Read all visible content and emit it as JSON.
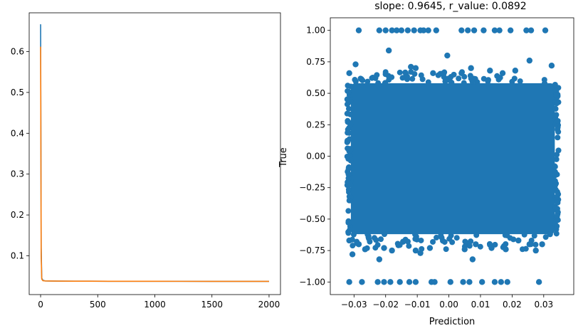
{
  "chart_data": [
    {
      "type": "line",
      "title": "",
      "xlabel": "",
      "ylabel": "",
      "xlim": [
        -100,
        2100
      ],
      "ylim": [
        0.005,
        0.695
      ],
      "xticks": [
        0,
        500,
        1000,
        1500,
        2000
      ],
      "yticks": [
        0.1,
        0.2,
        0.3,
        0.4,
        0.5,
        0.6
      ],
      "grid": false,
      "series": [
        {
          "color": "#1f77b4",
          "x": [
            0,
            5,
            10,
            20,
            40,
            80,
            150,
            300,
            600,
            1000,
            1500,
            2000
          ],
          "y": [
            0.667,
            0.12,
            0.045,
            0.04,
            0.0385,
            0.0383,
            0.038,
            0.0378,
            0.0376,
            0.0375,
            0.0374,
            0.0373
          ]
        },
        {
          "color": "#ff7f0e",
          "x": [
            0,
            5,
            10,
            20,
            40,
            80,
            150,
            300,
            600,
            1000,
            1500,
            2000
          ],
          "y": [
            0.612,
            0.1,
            0.043,
            0.039,
            0.0385,
            0.0382,
            0.038,
            0.0378,
            0.0376,
            0.0375,
            0.0374,
            0.0373
          ]
        }
      ]
    },
    {
      "type": "scatter",
      "title": "slope: 0.9645, r_value: 0.0892",
      "xlabel": "Prediction",
      "ylabel": "True",
      "xlim": [
        -0.0375,
        0.0395
      ],
      "ylim": [
        -1.1,
        1.1
      ],
      "xticks": [
        -0.03,
        -0.02,
        -0.01,
        0.0,
        0.01,
        0.02,
        0.03
      ],
      "xtick_labels": [
        "−0.03",
        "−0.02",
        "−0.01",
        "0.00",
        "0.01",
        "0.02",
        "0.03"
      ],
      "yticks": [
        -1.0,
        -0.75,
        -0.5,
        -0.25,
        0.0,
        0.25,
        0.5,
        0.75,
        1.0
      ],
      "ytick_labels": [
        "−1.00",
        "−0.75",
        "−0.50",
        "−0.25",
        "0.00",
        "0.25",
        "0.50",
        "0.75",
        "1.00"
      ],
      "grid": false,
      "color": "#1f77b4",
      "dense_region": {
        "x_range": [
          -0.031,
          0.0335
        ],
        "y_range": [
          -0.62,
          0.58
        ]
      },
      "points": [
        [
          -0.0285,
          1.0
        ],
        [
          -0.022,
          1.0
        ],
        [
          -0.02,
          1.0
        ],
        [
          -0.018,
          1.0
        ],
        [
          -0.0165,
          1.0
        ],
        [
          -0.015,
          1.0
        ],
        [
          -0.013,
          1.0
        ],
        [
          -0.011,
          1.0
        ],
        [
          -0.009,
          1.0
        ],
        [
          -0.008,
          1.0
        ],
        [
          -0.0065,
          1.0
        ],
        [
          -0.004,
          1.0
        ],
        [
          0.004,
          1.0
        ],
        [
          0.006,
          1.0
        ],
        [
          0.008,
          1.0
        ],
        [
          0.011,
          1.0
        ],
        [
          0.0145,
          1.0
        ],
        [
          0.016,
          1.0
        ],
        [
          0.0195,
          1.0
        ],
        [
          0.0245,
          1.0
        ],
        [
          0.026,
          1.0
        ],
        [
          0.0305,
          1.0
        ],
        [
          -0.0315,
          -1.0
        ],
        [
          -0.0275,
          -1.0
        ],
        [
          -0.0225,
          -1.0
        ],
        [
          -0.0205,
          -1.0
        ],
        [
          -0.0185,
          -1.0
        ],
        [
          -0.0155,
          -1.0
        ],
        [
          -0.0125,
          -1.0
        ],
        [
          -0.0105,
          -1.0
        ],
        [
          -0.0055,
          -1.0
        ],
        [
          -0.0045,
          -1.0
        ],
        [
          0.0005,
          -1.0
        ],
        [
          0.0045,
          -1.0
        ],
        [
          0.0065,
          -1.0
        ],
        [
          0.0105,
          -1.0
        ],
        [
          0.0145,
          -1.0
        ],
        [
          0.0165,
          -1.0
        ],
        [
          0.0185,
          -1.0
        ],
        [
          0.0285,
          -1.0
        ],
        [
          -0.019,
          0.84
        ],
        [
          -0.0005,
          0.8
        ],
        [
          0.0255,
          0.76
        ],
        [
          -0.0295,
          0.73
        ],
        [
          -0.0105,
          0.7
        ],
        [
          -0.012,
          0.71
        ],
        [
          0.007,
          0.7
        ],
        [
          0.0325,
          0.72
        ],
        [
          0.013,
          0.68
        ],
        [
          0.021,
          0.68
        ],
        [
          -0.0315,
          0.66
        ],
        [
          -0.005,
          0.66
        ],
        [
          0.004,
          0.66
        ],
        [
          0.017,
          0.66
        ],
        [
          -0.0305,
          -0.78
        ],
        [
          -0.0285,
          -0.7
        ],
        [
          -0.0265,
          -0.74
        ],
        [
          -0.022,
          -0.82
        ],
        [
          -0.0205,
          -0.73
        ],
        [
          -0.018,
          -0.75
        ],
        [
          -0.0145,
          -0.68
        ],
        [
          -0.0105,
          -0.75
        ],
        [
          -0.009,
          -0.77
        ],
        [
          -0.006,
          -0.73
        ],
        [
          0.005,
          -0.74
        ],
        [
          0.0075,
          -0.82
        ],
        [
          0.0085,
          -0.7
        ],
        [
          0.0135,
          -0.73
        ],
        [
          0.018,
          -0.74
        ],
        [
          0.022,
          -0.67
        ],
        [
          0.0255,
          -0.7
        ],
        [
          0.0275,
          -0.75
        ],
        [
          0.032,
          -0.62
        ],
        [
          -0.0315,
          -0.67
        ],
        [
          0.0295,
          -0.7
        ]
      ]
    }
  ]
}
